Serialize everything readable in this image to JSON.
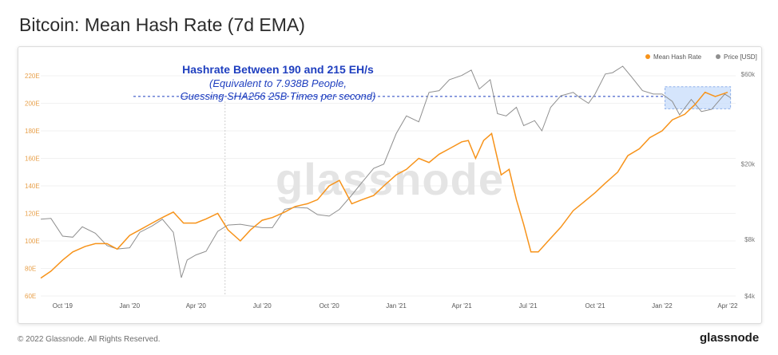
{
  "header": {
    "title": "Bitcoin: Mean Hash Rate (7d EMA)"
  },
  "footer": {
    "copyright": "© 2022 Glassnode. All Rights Reserved.",
    "brand": "glassnode"
  },
  "watermark": "glassnode",
  "annotation": {
    "line1": "Hashrate Between 190 and 215 EH/s",
    "line2": "(Equivalent to 7.938B People,",
    "line3": "Guessing SHA256 25B Times per second)"
  },
  "colors": {
    "hash": "#f7931a",
    "price": "#8f8f8f",
    "annotation": "#1f3fbf",
    "highlight": "#c7dcfb"
  },
  "chart_data": {
    "type": "line",
    "title": "Bitcoin: Mean Hash Rate (7d EMA)",
    "x_ticks": [
      "Oct '19",
      "Jan '20",
      "Apr '20",
      "Jul '20",
      "Oct '20",
      "Jan '21",
      "Apr '21",
      "Jul '21",
      "Oct '21",
      "Jan '22",
      "Apr '22"
    ],
    "y_left_ticks": [
      "60E",
      "80E",
      "100E",
      "120E",
      "140E",
      "160E",
      "180E",
      "200E",
      "220E"
    ],
    "y_right_ticks": [
      "$4k",
      "$8k",
      "$20k",
      "$60k"
    ],
    "ylim_left": [
      60,
      220
    ],
    "y_right_scale": "log",
    "legend": {
      "placement": "top-right",
      "items": [
        "Mean Hash Rate",
        "Price [USD]"
      ]
    },
    "reference_line": {
      "y": 205,
      "style": "dashed"
    },
    "highlight_band": {
      "x_start": "2022-01-05",
      "x_end": "2022-04-05",
      "y_start": 196,
      "y_end": 212
    },
    "series": [
      {
        "name": "Mean Hash Rate",
        "axis": "left",
        "points": [
          [
            "2019-09-01",
            73
          ],
          [
            "2019-09-15",
            78
          ],
          [
            "2019-10-01",
            86
          ],
          [
            "2019-10-15",
            92
          ],
          [
            "2019-11-01",
            96
          ],
          [
            "2019-11-15",
            98
          ],
          [
            "2019-12-01",
            98
          ],
          [
            "2019-12-15",
            94
          ],
          [
            "2020-01-01",
            104
          ],
          [
            "2020-01-15",
            108
          ],
          [
            "2020-02-01",
            113
          ],
          [
            "2020-02-15",
            117
          ],
          [
            "2020-03-01",
            121
          ],
          [
            "2020-03-15",
            113
          ],
          [
            "2020-04-01",
            113
          ],
          [
            "2020-04-15",
            116
          ],
          [
            "2020-05-01",
            120
          ],
          [
            "2020-05-15",
            108
          ],
          [
            "2020-06-01",
            100
          ],
          [
            "2020-06-15",
            108
          ],
          [
            "2020-07-01",
            115
          ],
          [
            "2020-07-15",
            117
          ],
          [
            "2020-08-01",
            121
          ],
          [
            "2020-08-15",
            125
          ],
          [
            "2020-09-01",
            127
          ],
          [
            "2020-09-15",
            130
          ],
          [
            "2020-10-01",
            140
          ],
          [
            "2020-10-15",
            144
          ],
          [
            "2020-11-01",
            127
          ],
          [
            "2020-11-15",
            130
          ],
          [
            "2020-12-01",
            133
          ],
          [
            "2020-12-15",
            140
          ],
          [
            "2021-01-01",
            148
          ],
          [
            "2021-01-15",
            152
          ],
          [
            "2021-02-01",
            160
          ],
          [
            "2021-02-15",
            157
          ],
          [
            "2021-03-01",
            163
          ],
          [
            "2021-03-15",
            167
          ],
          [
            "2021-04-01",
            172
          ],
          [
            "2021-04-10",
            173
          ],
          [
            "2021-04-20",
            160
          ],
          [
            "2021-05-01",
            173
          ],
          [
            "2021-05-12",
            178
          ],
          [
            "2021-05-25",
            148
          ],
          [
            "2021-06-05",
            152
          ],
          [
            "2021-06-15",
            130
          ],
          [
            "2021-06-25",
            112
          ],
          [
            "2021-07-05",
            92
          ],
          [
            "2021-07-15",
            92
          ],
          [
            "2021-08-01",
            102
          ],
          [
            "2021-08-15",
            110
          ],
          [
            "2021-09-01",
            122
          ],
          [
            "2021-09-15",
            128
          ],
          [
            "2021-10-01",
            135
          ],
          [
            "2021-10-15",
            142
          ],
          [
            "2021-11-01",
            150
          ],
          [
            "2021-11-15",
            162
          ],
          [
            "2021-12-01",
            167
          ],
          [
            "2021-12-15",
            175
          ],
          [
            "2022-01-01",
            180
          ],
          [
            "2022-01-15",
            188
          ],
          [
            "2022-02-01",
            192
          ],
          [
            "2022-02-15",
            199
          ],
          [
            "2022-03-01",
            208
          ],
          [
            "2022-03-15",
            205
          ],
          [
            "2022-04-01",
            208
          ]
        ]
      },
      {
        "name": "Price [USD]",
        "axis": "right",
        "points": [
          [
            "2019-09-01",
            10200
          ],
          [
            "2019-09-15",
            10300
          ],
          [
            "2019-10-01",
            8300
          ],
          [
            "2019-10-15",
            8200
          ],
          [
            "2019-10-28",
            9300
          ],
          [
            "2019-11-15",
            8600
          ],
          [
            "2019-12-01",
            7400
          ],
          [
            "2019-12-15",
            7100
          ],
          [
            "2020-01-01",
            7200
          ],
          [
            "2020-01-15",
            8700
          ],
          [
            "2020-02-01",
            9400
          ],
          [
            "2020-02-15",
            10200
          ],
          [
            "2020-03-01",
            8700
          ],
          [
            "2020-03-12",
            5000
          ],
          [
            "2020-03-20",
            6200
          ],
          [
            "2020-04-01",
            6600
          ],
          [
            "2020-04-15",
            6900
          ],
          [
            "2020-05-01",
            8800
          ],
          [
            "2020-05-15",
            9500
          ],
          [
            "2020-06-01",
            9600
          ],
          [
            "2020-06-15",
            9400
          ],
          [
            "2020-07-01",
            9200
          ],
          [
            "2020-07-15",
            9200
          ],
          [
            "2020-08-01",
            11500
          ],
          [
            "2020-08-15",
            11800
          ],
          [
            "2020-09-01",
            11700
          ],
          [
            "2020-09-15",
            10800
          ],
          [
            "2020-10-01",
            10600
          ],
          [
            "2020-10-15",
            11500
          ],
          [
            "2020-11-01",
            13700
          ],
          [
            "2020-11-15",
            16000
          ],
          [
            "2020-12-01",
            19000
          ],
          [
            "2020-12-15",
            20000
          ],
          [
            "2021-01-01",
            29000
          ],
          [
            "2021-01-15",
            36000
          ],
          [
            "2021-02-01",
            33500
          ],
          [
            "2021-02-15",
            48000
          ],
          [
            "2021-03-01",
            49000
          ],
          [
            "2021-03-15",
            56000
          ],
          [
            "2021-04-01",
            59000
          ],
          [
            "2021-04-14",
            63000
          ],
          [
            "2021-04-25",
            50000
          ],
          [
            "2021-05-10",
            56000
          ],
          [
            "2021-05-20",
            37000
          ],
          [
            "2021-06-01",
            36000
          ],
          [
            "2021-06-15",
            40000
          ],
          [
            "2021-06-25",
            32000
          ],
          [
            "2021-07-10",
            34000
          ],
          [
            "2021-07-20",
            30000
          ],
          [
            "2021-08-01",
            40000
          ],
          [
            "2021-08-15",
            46000
          ],
          [
            "2021-09-01",
            48000
          ],
          [
            "2021-09-10",
            45000
          ],
          [
            "2021-09-22",
            42000
          ],
          [
            "2021-10-01",
            47000
          ],
          [
            "2021-10-15",
            60000
          ],
          [
            "2021-10-25",
            61000
          ],
          [
            "2021-11-08",
            66000
          ],
          [
            "2021-11-20",
            58000
          ],
          [
            "2021-12-05",
            49000
          ],
          [
            "2021-12-20",
            47000
          ],
          [
            "2022-01-01",
            47000
          ],
          [
            "2022-01-15",
            43000
          ],
          [
            "2022-01-25",
            36500
          ],
          [
            "2022-02-10",
            44000
          ],
          [
            "2022-02-24",
            38000
          ],
          [
            "2022-03-10",
            39000
          ],
          [
            "2022-03-28",
            47000
          ],
          [
            "2022-04-05",
            45000
          ]
        ]
      }
    ]
  }
}
